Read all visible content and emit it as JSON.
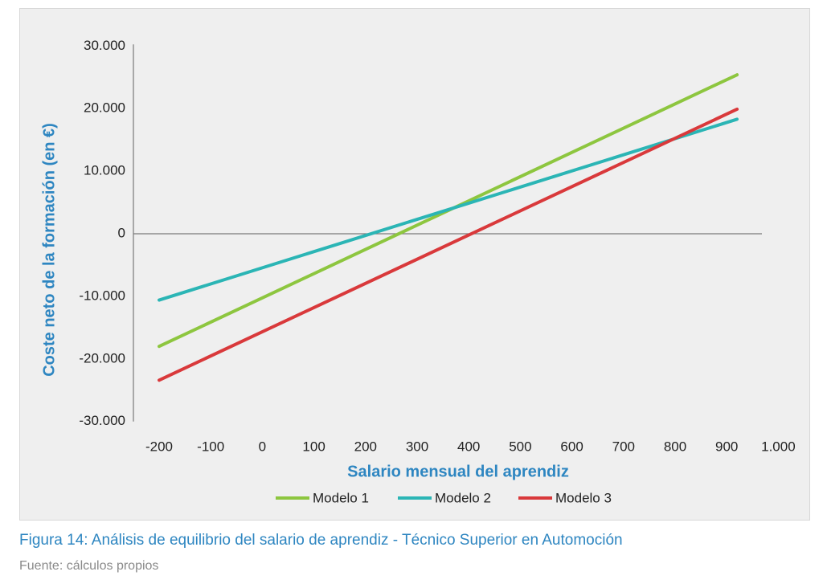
{
  "chart_data": {
    "type": "line",
    "xlabel": "Salario mensual del aprendiz",
    "ylabel": "Coste neto de la formación (en €)",
    "xlim": [
      -200,
      1000
    ],
    "ylim": [
      -30000,
      30000
    ],
    "x_ticks": [
      "-200",
      "-100",
      "0",
      "100",
      "200",
      "300",
      "400",
      "500",
      "600",
      "700",
      "800",
      "900",
      "1.000"
    ],
    "y_ticks": [
      "30.000",
      "20.000",
      "10.000",
      "0",
      "-10.000",
      "-20.000",
      "-30.000"
    ],
    "series": [
      {
        "name": "Modelo 1",
        "color": "#8dc63f",
        "x": [
          -200,
          920
        ],
        "y": [
          -18000,
          25400
        ]
      },
      {
        "name": "Modelo 2",
        "color": "#2bb5b5",
        "x": [
          -200,
          920
        ],
        "y": [
          -10600,
          18300
        ]
      },
      {
        "name": "Modelo 3",
        "color": "#d9393b",
        "x": [
          -200,
          920
        ],
        "y": [
          -23400,
          19900
        ]
      }
    ],
    "legend_position": "bottom",
    "grid": false
  },
  "caption": {
    "title": "Figura 14: Análisis de equilibrio del salario de aprendiz - Técnico Superior en Automoción",
    "source": "Fuente: cálculos propios"
  }
}
